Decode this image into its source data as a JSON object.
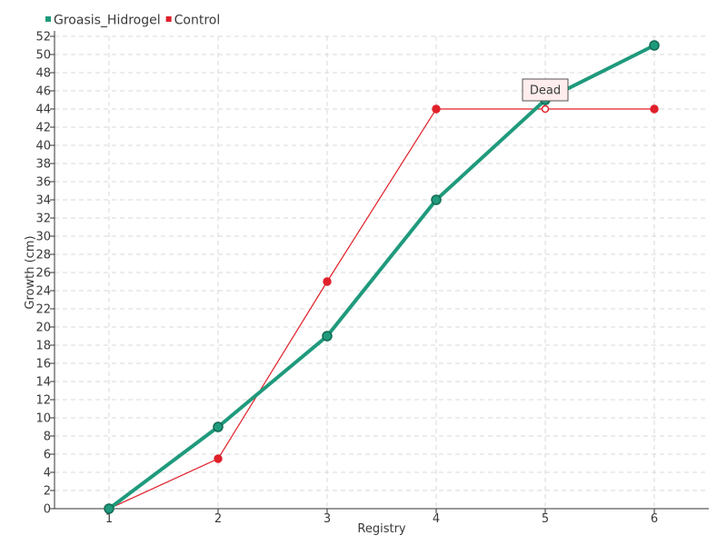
{
  "chart_data": {
    "type": "line",
    "xlabel": "Registry",
    "ylabel": "Growth (cm)",
    "categories": [
      "1",
      "2",
      "3",
      "4",
      "5",
      "6"
    ],
    "ylim": [
      0,
      52
    ],
    "ytick_step": 2,
    "grid": true,
    "legend_position": "top-left",
    "series": [
      {
        "name": "Groasis_Hidrogel",
        "color": "#1f9a7c",
        "values": [
          0,
          9,
          19,
          34,
          45,
          51
        ]
      },
      {
        "name": "Control",
        "color": "#e0202a",
        "values": [
          0,
          5.5,
          25,
          44,
          44,
          44
        ]
      }
    ],
    "annotations": [
      {
        "text": "Dead",
        "series": "Control",
        "category": "5",
        "value": 44
      }
    ]
  }
}
